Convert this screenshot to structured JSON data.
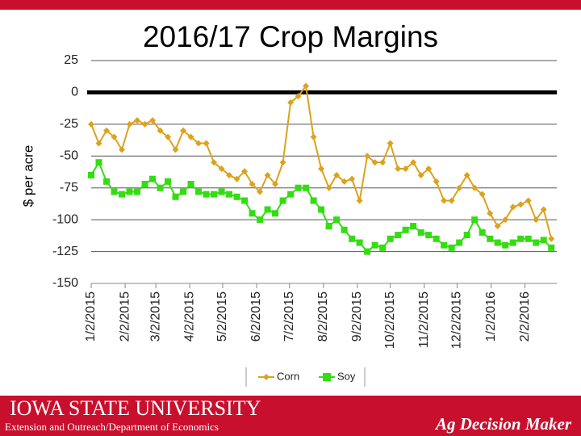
{
  "chart_data": {
    "type": "line",
    "title": "2016/17 Crop Margins",
    "y_label": "$ per acre",
    "x": [
      "2015-01-02",
      "2015-01-09",
      "2015-01-16",
      "2015-01-23",
      "2015-01-30",
      "2015-02-06",
      "2015-02-13",
      "2015-02-20",
      "2015-02-27",
      "2015-03-06",
      "2015-03-13",
      "2015-03-20",
      "2015-03-27",
      "2015-04-03",
      "2015-04-10",
      "2015-04-17",
      "2015-04-24",
      "2015-05-01",
      "2015-05-08",
      "2015-05-15",
      "2015-05-22",
      "2015-05-29",
      "2015-06-05",
      "2015-06-12",
      "2015-06-19",
      "2015-06-26",
      "2015-07-03",
      "2015-07-10",
      "2015-07-17",
      "2015-07-24",
      "2015-07-31",
      "2015-08-07",
      "2015-08-14",
      "2015-08-21",
      "2015-08-28",
      "2015-09-04",
      "2015-09-11",
      "2015-09-18",
      "2015-09-25",
      "2015-10-02",
      "2015-10-09",
      "2015-10-16",
      "2015-10-23",
      "2015-10-30",
      "2015-11-06",
      "2015-11-13",
      "2015-11-20",
      "2015-11-27",
      "2015-12-04",
      "2015-12-11",
      "2015-12-18",
      "2015-12-25",
      "2016-01-01",
      "2016-01-08",
      "2016-01-15",
      "2016-01-22",
      "2016-01-29",
      "2016-02-05",
      "2016-02-12",
      "2016-02-19",
      "2016-02-26"
    ],
    "series": [
      {
        "name": "Corn",
        "color": "#dba21c",
        "marker": "diamond",
        "values": [
          -25,
          -40,
          -30,
          -35,
          -45,
          -25,
          -22,
          -25,
          -22,
          -30,
          -35,
          -45,
          -30,
          -35,
          -40,
          -40,
          -55,
          -60,
          -65,
          -68,
          -62,
          -72,
          -78,
          -65,
          -72,
          -55,
          -8,
          -3,
          5,
          -35,
          -60,
          -75,
          -65,
          -70,
          -68,
          -85,
          -50,
          -55,
          -55,
          -40,
          -60,
          -60,
          -55,
          -65,
          -60,
          -70,
          -85,
          -85,
          -75,
          -65,
          -75,
          -80,
          -95,
          -105,
          -100,
          -90,
          -88,
          -85,
          -100,
          -92,
          -115
        ]
      },
      {
        "name": "Soy",
        "color": "#33dd11",
        "marker": "square",
        "values": [
          -65,
          -55,
          -70,
          -78,
          -80,
          -78,
          -78,
          -72,
          -68,
          -75,
          -70,
          -82,
          -78,
          -72,
          -78,
          -80,
          -80,
          -78,
          -80,
          -82,
          -85,
          -95,
          -100,
          -92,
          -95,
          -85,
          -80,
          -75,
          -75,
          -85,
          -92,
          -105,
          -100,
          -108,
          -115,
          -118,
          -125,
          -120,
          -122,
          -115,
          -112,
          -108,
          -105,
          -110,
          -112,
          -115,
          -120,
          -122,
          -118,
          -112,
          -100,
          -110,
          -115,
          -118,
          -120,
          -118,
          -115,
          -115,
          -118,
          -116,
          -122
        ]
      }
    ],
    "xlim": [
      "2015-01-02",
      "2016-03-02"
    ],
    "xticks": [
      {
        "value": "2015-01-02",
        "label": "1/2/2015"
      },
      {
        "value": "2015-02-02",
        "label": "2/2/2015"
      },
      {
        "value": "2015-03-02",
        "label": "3/2/2015"
      },
      {
        "value": "2015-04-02",
        "label": "4/2/2015"
      },
      {
        "value": "2015-05-02",
        "label": "5/2/2015"
      },
      {
        "value": "2015-06-02",
        "label": "6/2/2015"
      },
      {
        "value": "2015-07-02",
        "label": "7/2/2015"
      },
      {
        "value": "2015-08-02",
        "label": "8/2/2015"
      },
      {
        "value": "2015-09-02",
        "label": "9/2/2015"
      },
      {
        "value": "2015-10-02",
        "label": "10/2/2015"
      },
      {
        "value": "2015-11-02",
        "label": "11/2/2015"
      },
      {
        "value": "2015-12-02",
        "label": "12/2/2015"
      },
      {
        "value": "2016-01-02",
        "label": "1/2/2016"
      },
      {
        "value": "2016-02-02",
        "label": "2/2/2016"
      }
    ],
    "ylim": [
      -150,
      25
    ],
    "yticks": [
      25,
      0,
      -25,
      -50,
      -75,
      -100,
      -125,
      -150
    ],
    "grid": true,
    "zero_line": true,
    "legend": "bottom"
  },
  "branding": {
    "university": "IOWA STATE UNIVERSITY",
    "department": "Extension and Outreach/Department of Economics",
    "program": "Ag Decision Maker"
  }
}
